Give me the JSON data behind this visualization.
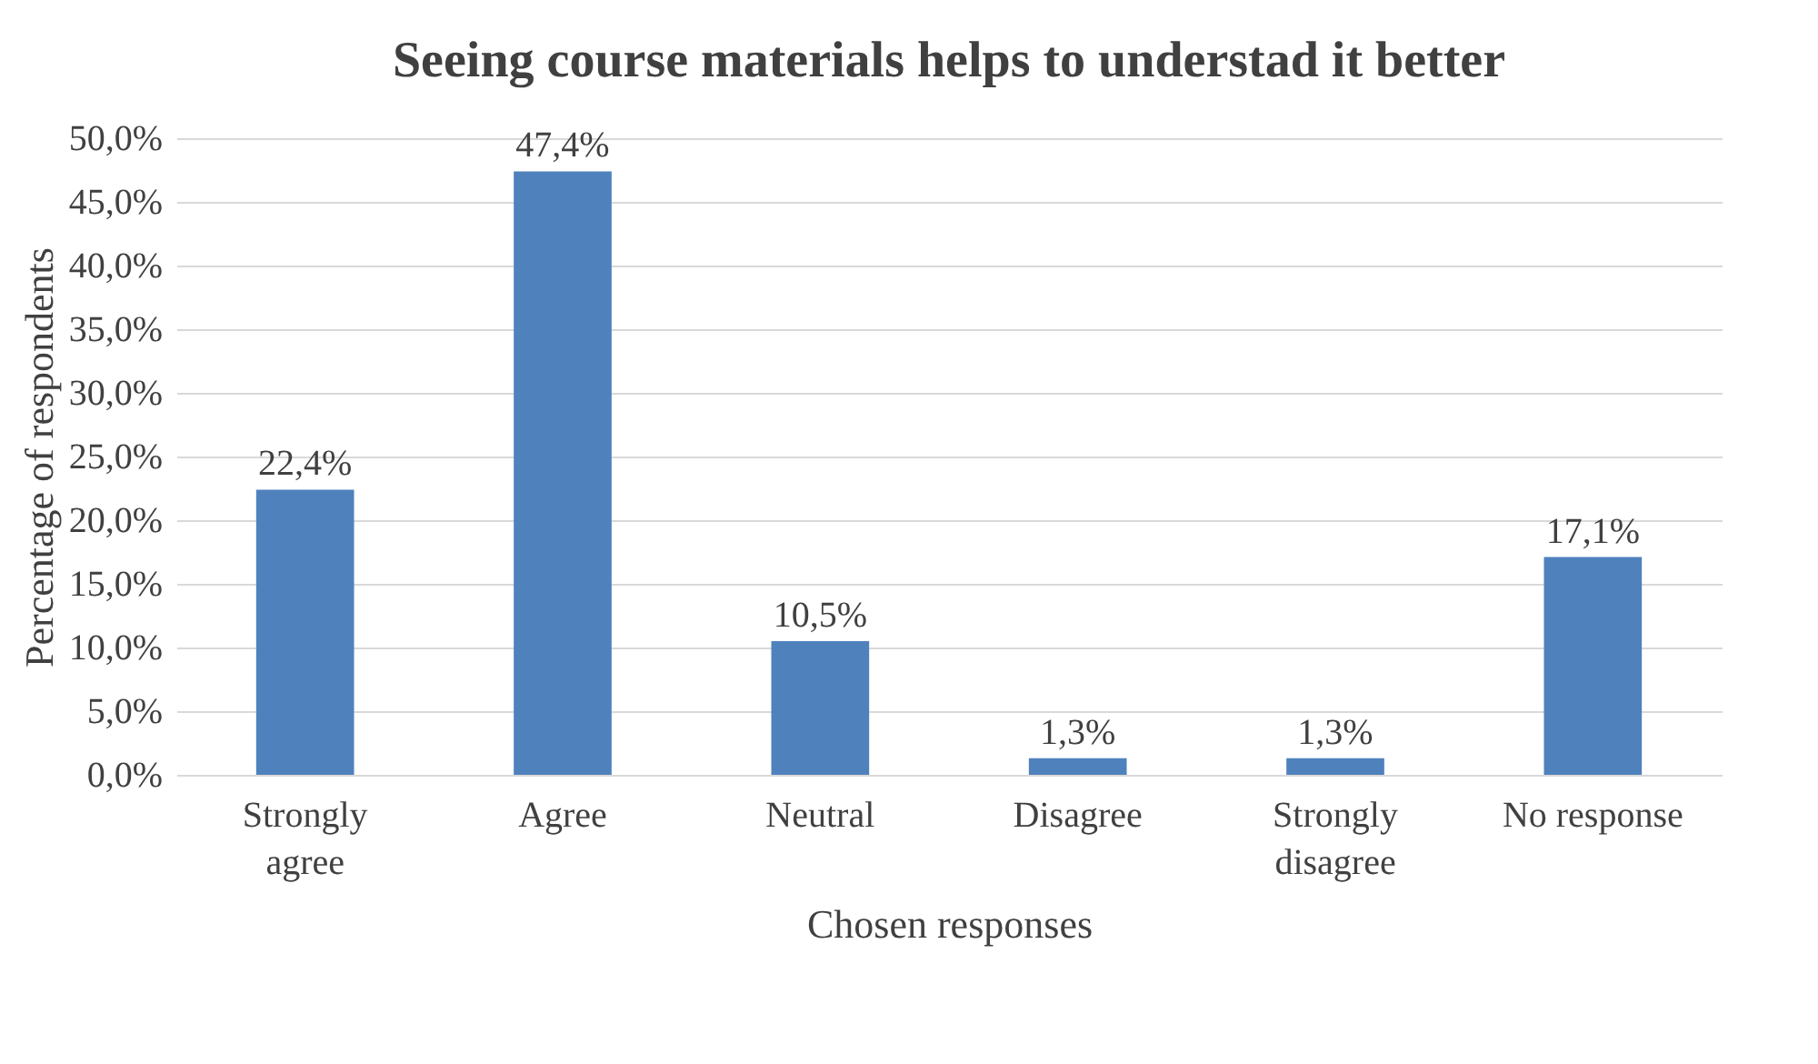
{
  "chart_data": {
    "type": "bar",
    "title": "Seeing  course materials helps to understad it better",
    "xlabel": "Chosen responses",
    "ylabel": "Percentage of respondents",
    "categories": [
      "Strongly\nagree",
      "Agree",
      "Neutral",
      "Disagree",
      "Strongly\ndisagree",
      "No response"
    ],
    "values": [
      22.4,
      47.4,
      10.5,
      1.3,
      1.3,
      17.1
    ],
    "value_labels": [
      "22,4%",
      "47,4%",
      "10,5%",
      "1,3%",
      "1,3%",
      "17,1%"
    ],
    "color": "#4f81bd",
    "ylim": [
      0,
      50
    ],
    "yticks": [
      {
        "value": 0,
        "label": "0,0%"
      },
      {
        "value": 5,
        "label": "5,0%"
      },
      {
        "value": 10,
        "label": "10,0%"
      },
      {
        "value": 15,
        "label": "15,0%"
      },
      {
        "value": 20,
        "label": "20,0%"
      },
      {
        "value": 25,
        "label": "25,0%"
      },
      {
        "value": 30,
        "label": "30,0%"
      },
      {
        "value": 35,
        "label": "35,0%"
      },
      {
        "value": 40,
        "label": "40,0%"
      },
      {
        "value": 45,
        "label": "45,0%"
      },
      {
        "value": 50,
        "label": "50,0%"
      }
    ],
    "grid": "y"
  }
}
